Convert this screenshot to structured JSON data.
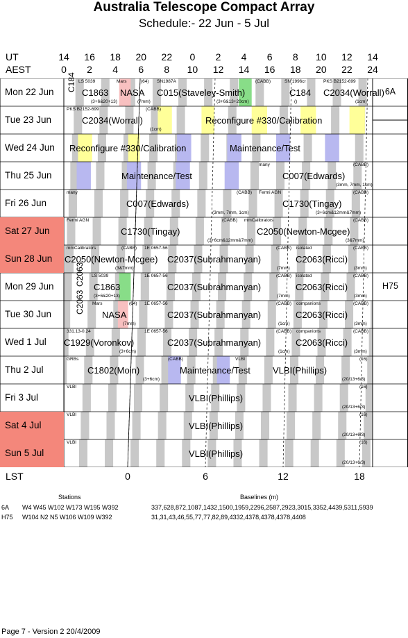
{
  "title": "Australia Telescope Compact Array",
  "subtitle": "Schedule:- 22 Jun - 5  Jul",
  "ut_label": "UT",
  "aest_label": "AEST",
  "lst_label": "LST",
  "ut_ticks": [
    "14",
    "16",
    "18",
    "20",
    "22",
    "0",
    "2",
    "4",
    "6",
    "8",
    "10",
    "12",
    "14"
  ],
  "aest_ticks": [
    "0",
    "2",
    "4",
    "6",
    "8",
    "10",
    "12",
    "14",
    "16",
    "18",
    "20",
    "22",
    "24"
  ],
  "lst_ticks": [
    "0",
    "6",
    "12",
    "18"
  ],
  "days": [
    {
      "label": "Mon   22 Jun",
      "weekend": false
    },
    {
      "label": "Tue   23 Jun",
      "weekend": false
    },
    {
      "label": "Wed   24 Jun",
      "weekend": false
    },
    {
      "label": "Thu   25 Jun",
      "weekend": false
    },
    {
      "label": "Fri    26 Jun",
      "weekend": false
    },
    {
      "label": "Sat   27 Jun",
      "weekend": true
    },
    {
      "label": "Sun   28 Jun",
      "weekend": true
    },
    {
      "label": "Mon   29 Jun",
      "weekend": false
    },
    {
      "label": "Tue   30 Jun",
      "weekend": false
    },
    {
      "label": "Wed    1  Jul",
      "weekend": false
    },
    {
      "label": "Thu    2  Jul",
      "weekend": false
    },
    {
      "label": "Fri     3  Jul",
      "weekend": false
    },
    {
      "label": "Sat    4  Jul",
      "weekend": true
    },
    {
      "label": "Sun    5  Jul",
      "weekend": true
    }
  ],
  "configs": [
    {
      "name": "6A",
      "from_day": 0,
      "to_day": 1
    },
    {
      "name": "H75",
      "from_day": 1,
      "to_day": 14
    }
  ],
  "entries": [
    {
      "row": 0,
      "big": "C1863",
      "note": "LS 5039",
      "sub": "(3+6&20+13)"
    },
    {
      "row": 0,
      "big": "NASA",
      "note": "Mars",
      "tag": "(64)",
      "sub": "(7mm)"
    },
    {
      "row": 0,
      "big": "C015(Staveley-Smith)",
      "note": "SN1987A",
      "tag": "(CABB)",
      "sub": "(3+6&13+20cm)"
    },
    {
      "row": 0,
      "big": "C184",
      "note": "SN 1996cr",
      "sub": "()"
    },
    {
      "row": 0,
      "big": "C2034(Worrall)",
      "note": "PKS B2152-699",
      "sub": "(1cm)"
    },
    {
      "row": 0,
      "vertical": "C184"
    },
    {
      "row": 1,
      "big": "C2034(Worrall)",
      "note": "PKS B2152-699",
      "tag": "(CABB)",
      "sub": "(1cm)"
    },
    {
      "row": 1,
      "big": "Reconfigure #330/Calibration"
    },
    {
      "row": 2,
      "big": "Reconfigure #330/Calibration"
    },
    {
      "row": 2,
      "big": "Maintenance/Test"
    },
    {
      "row": 3,
      "big": "Maintenance/Test"
    },
    {
      "row": 3,
      "big": "C007(Edwards)",
      "note": "many",
      "tag": "(CABB)",
      "sub": "(3mm, 7mm, 1cm)"
    },
    {
      "row": 4,
      "big": "C007(Edwards)",
      "note": "many",
      "tag": "(CABB)",
      "sub": "(3mm, 7mm, 1cm)"
    },
    {
      "row": 4,
      "big": "C1730(Tingay)",
      "note": "Fermi AGN",
      "tag": "(CABB)",
      "sub": "(3+6cm&12mm&7mm)"
    },
    {
      "row": 5,
      "big": "C1730(Tingay)",
      "note": "Fermi AGN",
      "tag": "(CABB)",
      "sub": "(3+6cm&12mm&7mm)"
    },
    {
      "row": 5,
      "big": "C2050(Newton-Mcgee)",
      "note": "mmCalibrators",
      "tag": "(CABB)",
      "sub": "(3&7mm)"
    },
    {
      "row": 6,
      "big": "C2050(Newton-Mcgee)",
      "note": "mmCalibrators",
      "tag": "(CABB)",
      "sub": "(3&7mm)"
    },
    {
      "row": 6,
      "big": "C2037(Subrahmanyan)",
      "note": "1E 0657-56",
      "tag": "(CABB)",
      "sub": "(7mm)"
    },
    {
      "row": 6,
      "big": "C2063(Ricci)",
      "note": "isolated",
      "tag": "(CABB)",
      "sub": "(3mm)"
    },
    {
      "row": 7,
      "big": "C1863",
      "note": "LS 5039",
      "sub": "(3+6&20+13)"
    },
    {
      "row": 7,
      "big": "C2037(Subrahmanyan)",
      "note": "1E 0657-56",
      "tag": "(CABB)",
      "sub": "(7mm)"
    },
    {
      "row": 7,
      "big": "C2063(Ricci)",
      "note": "isolated",
      "tag": "(CABB)",
      "sub": "(3mm)"
    },
    {
      "row": 7,
      "vertical": "C2063"
    },
    {
      "row": 8,
      "big": "NASA",
      "note": "Mars",
      "tag": "(64)",
      "sub": "(7mm)"
    },
    {
      "row": 8,
      "big": "C2037(Subrahmanyan)",
      "note": "1E 0657-56",
      "tag": "(CABB)",
      "sub": "(1cm)"
    },
    {
      "row": 8,
      "big": "C2063(Ricci)",
      "note": "companions",
      "tag": "(CABB)",
      "sub": "(3mm)"
    },
    {
      "row": 8,
      "vertical": "C2063"
    },
    {
      "row": 9,
      "big": "C1929(Voronkov)",
      "note": "331.13-0.24",
      "sub": "(3+6cm)"
    },
    {
      "row": 9,
      "big": "C2037(Subrahmanyan)",
      "note": "1E 0657-56",
      "tag": "(CABB)",
      "sub": "(1cm)"
    },
    {
      "row": 9,
      "big": "C2063(Ricci)",
      "note": "companions",
      "tag": "(CABB)",
      "sub": "(3mm)"
    },
    {
      "row": 10,
      "big": "C1802(Moin)",
      "note": "GRBs",
      "tag": "(CABB)",
      "sub": "(3+6cm)"
    },
    {
      "row": 10,
      "big": "Maintenance/Test"
    },
    {
      "row": 10,
      "big": "VLBI(Phillips)",
      "note": "VLBI",
      "tag": "(16)",
      "sub": "(20/13+6/3)"
    },
    {
      "row": 11,
      "big": "VLBI(Phillips)",
      "note": "VLBI",
      "tag": "(16)",
      "sub": "(20/13+6/3)"
    },
    {
      "row": 12,
      "big": "VLBI(Phillips)",
      "note": "VLBI",
      "tag": "(16)",
      "sub": "(20/13+6/3)"
    },
    {
      "row": 13,
      "big": "VLBI(Phillips)",
      "note": "VLBI",
      "tag": "(16)",
      "sub": "(20/13+6/3)"
    }
  ],
  "stations_header": "Stations",
  "baselines_header": "Baselines (m)",
  "arrays": [
    {
      "name": "6A",
      "stations": "W4 W45 W102 W173 W195 W392",
      "baselines": "337,628,872,1087,1432,1500,1959,2296,2587,2923,3015,3352,4439,5311,5939"
    },
    {
      "name": "H75",
      "stations": "W104 N2 N5 W106 W109 W392",
      "baselines": "31,31,43,46,55,77,77,82,89,4332,4378,4378,4378,4408"
    }
  ],
  "footer": "Page 7 - Version 2  20/4/2009",
  "colors": {
    "weekend": "#f4877b",
    "lst_band": "#c8c8c8",
    "maint": "#b8b8f0",
    "reconfig": "#ffff99",
    "green": "#88dd88",
    "pink": "#f8c0c0"
  }
}
